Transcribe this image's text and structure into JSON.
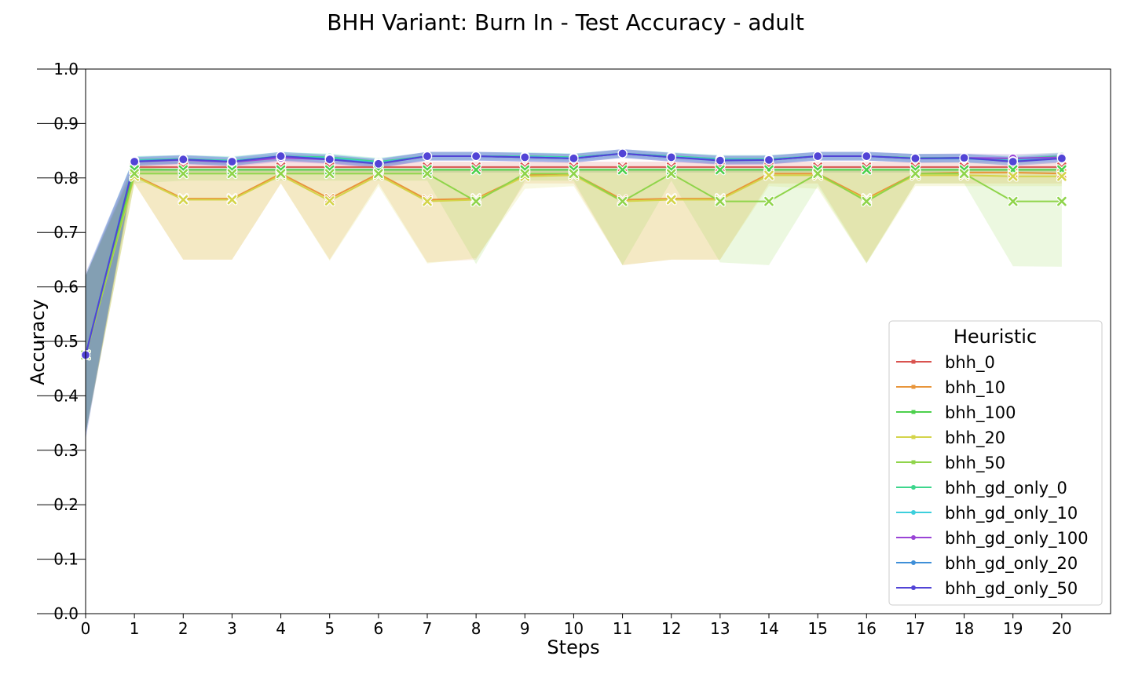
{
  "chart_data": {
    "type": "line",
    "title": "BHH Variant: Burn In - Test Accuracy - adult",
    "xlabel": "Steps",
    "ylabel": "Accuracy",
    "xlim": [
      0,
      21
    ],
    "ylim": [
      0.0,
      1.0
    ],
    "x_ticks": [
      0,
      1,
      2,
      3,
      4,
      5,
      6,
      7,
      8,
      9,
      10,
      11,
      12,
      13,
      14,
      15,
      16,
      17,
      18,
      19,
      20
    ],
    "y_ticks": [
      "0.0",
      "0.1",
      "0.2",
      "0.3",
      "0.4",
      "0.5",
      "0.6",
      "0.7",
      "0.8",
      "0.9",
      "1.0"
    ],
    "grid": false,
    "legend": {
      "title": "Heuristic",
      "position": "lower-right"
    },
    "x": [
      0,
      1,
      2,
      3,
      4,
      5,
      6,
      7,
      8,
      9,
      10,
      11,
      12,
      13,
      14,
      15,
      16,
      17,
      18,
      19,
      20
    ],
    "series": [
      {
        "name": "bhh_0",
        "color": "#d9534f",
        "marker": "x",
        "values": [
          0.475,
          0.82,
          0.82,
          0.82,
          0.82,
          0.82,
          0.82,
          0.82,
          0.82,
          0.82,
          0.82,
          0.82,
          0.82,
          0.82,
          0.82,
          0.82,
          0.82,
          0.82,
          0.82,
          0.82,
          0.82
        ],
        "band": [
          [
            0.33,
            0.62
          ],
          [
            0.81,
            0.83
          ],
          [
            0.81,
            0.83
          ],
          [
            0.81,
            0.83
          ],
          [
            0.81,
            0.835
          ],
          [
            0.81,
            0.83
          ],
          [
            0.81,
            0.83
          ],
          [
            0.81,
            0.83
          ],
          [
            0.81,
            0.83
          ],
          [
            0.81,
            0.83
          ],
          [
            0.81,
            0.83
          ],
          [
            0.81,
            0.83
          ],
          [
            0.81,
            0.83
          ],
          [
            0.81,
            0.83
          ],
          [
            0.81,
            0.83
          ],
          [
            0.81,
            0.83
          ],
          [
            0.81,
            0.83
          ],
          [
            0.81,
            0.83
          ],
          [
            0.81,
            0.83
          ],
          [
            0.81,
            0.83
          ],
          [
            0.81,
            0.83
          ]
        ]
      },
      {
        "name": "bhh_10",
        "color": "#e8953a",
        "marker": "x",
        "values": [
          0.475,
          0.805,
          0.762,
          0.762,
          0.808,
          0.762,
          0.808,
          0.76,
          0.762,
          0.805,
          0.808,
          0.76,
          0.762,
          0.762,
          0.808,
          0.808,
          0.762,
          0.808,
          0.81,
          0.81,
          0.808
        ],
        "band": [
          [
            0.33,
            0.62
          ],
          [
            0.79,
            0.82
          ],
          [
            0.65,
            0.815
          ],
          [
            0.65,
            0.815
          ],
          [
            0.79,
            0.815
          ],
          [
            0.65,
            0.815
          ],
          [
            0.79,
            0.815
          ],
          [
            0.645,
            0.815
          ],
          [
            0.65,
            0.815
          ],
          [
            0.79,
            0.815
          ],
          [
            0.79,
            0.815
          ],
          [
            0.64,
            0.815
          ],
          [
            0.65,
            0.815
          ],
          [
            0.65,
            0.815
          ],
          [
            0.79,
            0.815
          ],
          [
            0.79,
            0.815
          ],
          [
            0.645,
            0.815
          ],
          [
            0.79,
            0.815
          ],
          [
            0.79,
            0.815
          ],
          [
            0.79,
            0.815
          ],
          [
            0.79,
            0.815
          ]
        ]
      },
      {
        "name": "bhh_100",
        "color": "#4cd04c",
        "marker": "x",
        "values": [
          0.475,
          0.815,
          0.815,
          0.815,
          0.815,
          0.815,
          0.815,
          0.815,
          0.815,
          0.815,
          0.815,
          0.815,
          0.815,
          0.815,
          0.815,
          0.815,
          0.815,
          0.815,
          0.815,
          0.815,
          0.815
        ],
        "band": [
          [
            0.33,
            0.62
          ],
          [
            0.81,
            0.825
          ],
          [
            0.81,
            0.82
          ],
          [
            0.81,
            0.82
          ],
          [
            0.81,
            0.82
          ],
          [
            0.81,
            0.82
          ],
          [
            0.81,
            0.82
          ],
          [
            0.81,
            0.82
          ],
          [
            0.81,
            0.82
          ],
          [
            0.81,
            0.82
          ],
          [
            0.81,
            0.82
          ],
          [
            0.81,
            0.82
          ],
          [
            0.81,
            0.82
          ],
          [
            0.81,
            0.82
          ],
          [
            0.81,
            0.82
          ],
          [
            0.81,
            0.82
          ],
          [
            0.81,
            0.82
          ],
          [
            0.81,
            0.82
          ],
          [
            0.81,
            0.82
          ],
          [
            0.81,
            0.82
          ],
          [
            0.81,
            0.82
          ]
        ]
      },
      {
        "name": "bhh_20",
        "color": "#d4d44a",
        "marker": "x",
        "values": [
          0.475,
          0.803,
          0.76,
          0.76,
          0.805,
          0.758,
          0.805,
          0.757,
          0.76,
          0.803,
          0.805,
          0.757,
          0.76,
          0.76,
          0.805,
          0.805,
          0.76,
          0.805,
          0.805,
          0.803,
          0.803
        ],
        "band": [
          [
            0.33,
            0.62
          ],
          [
            0.79,
            0.815
          ],
          [
            0.65,
            0.81
          ],
          [
            0.65,
            0.81
          ],
          [
            0.79,
            0.81
          ],
          [
            0.648,
            0.81
          ],
          [
            0.785,
            0.81
          ],
          [
            0.643,
            0.81
          ],
          [
            0.653,
            0.81
          ],
          [
            0.78,
            0.81
          ],
          [
            0.785,
            0.81
          ],
          [
            0.64,
            0.81
          ],
          [
            0.65,
            0.81
          ],
          [
            0.65,
            0.81
          ],
          [
            0.785,
            0.81
          ],
          [
            0.78,
            0.81
          ],
          [
            0.643,
            0.81
          ],
          [
            0.785,
            0.81
          ],
          [
            0.785,
            0.81
          ],
          [
            0.785,
            0.81
          ],
          [
            0.785,
            0.81
          ]
        ]
      },
      {
        "name": "bhh_50",
        "color": "#8fd44a",
        "marker": "x",
        "values": [
          0.475,
          0.808,
          0.808,
          0.808,
          0.808,
          0.808,
          0.808,
          0.808,
          0.757,
          0.808,
          0.808,
          0.757,
          0.808,
          0.757,
          0.757,
          0.808,
          0.757,
          0.808,
          0.808,
          0.757,
          0.757
        ],
        "band": [
          [
            0.33,
            0.62
          ],
          [
            0.79,
            0.82
          ],
          [
            0.795,
            0.815
          ],
          [
            0.795,
            0.815
          ],
          [
            0.795,
            0.815
          ],
          [
            0.795,
            0.815
          ],
          [
            0.795,
            0.815
          ],
          [
            0.795,
            0.815
          ],
          [
            0.642,
            0.815
          ],
          [
            0.795,
            0.815
          ],
          [
            0.795,
            0.815
          ],
          [
            0.64,
            0.815
          ],
          [
            0.795,
            0.815
          ],
          [
            0.645,
            0.815
          ],
          [
            0.64,
            0.815
          ],
          [
            0.785,
            0.815
          ],
          [
            0.643,
            0.815
          ],
          [
            0.79,
            0.815
          ],
          [
            0.79,
            0.815
          ],
          [
            0.638,
            0.815
          ],
          [
            0.637,
            0.815
          ]
        ]
      },
      {
        "name": "bhh_gd_only_0",
        "color": "#3dd68c",
        "marker": "o",
        "values": [
          0.475,
          0.833,
          0.835,
          0.832,
          0.84,
          0.838,
          0.83,
          0.84,
          0.84,
          0.84,
          0.838,
          0.845,
          0.84,
          0.835,
          0.835,
          0.84,
          0.84,
          0.837,
          0.837,
          0.835,
          0.84
        ],
        "band": [
          [
            0.33,
            0.62
          ],
          [
            0.825,
            0.84
          ],
          [
            0.827,
            0.842
          ],
          [
            0.825,
            0.84
          ],
          [
            0.833,
            0.847
          ],
          [
            0.831,
            0.845
          ],
          [
            0.823,
            0.837
          ],
          [
            0.833,
            0.847
          ],
          [
            0.833,
            0.847
          ],
          [
            0.833,
            0.847
          ],
          [
            0.831,
            0.845
          ],
          [
            0.838,
            0.852
          ],
          [
            0.833,
            0.847
          ],
          [
            0.828,
            0.842
          ],
          [
            0.828,
            0.842
          ],
          [
            0.833,
            0.847
          ],
          [
            0.833,
            0.847
          ],
          [
            0.83,
            0.844
          ],
          [
            0.83,
            0.844
          ],
          [
            0.828,
            0.842
          ],
          [
            0.833,
            0.847
          ]
        ]
      },
      {
        "name": "bhh_gd_only_10",
        "color": "#3ccfdc",
        "marker": "o",
        "values": [
          0.475,
          0.832,
          0.834,
          0.831,
          0.84,
          0.836,
          0.828,
          0.84,
          0.84,
          0.839,
          0.837,
          0.845,
          0.839,
          0.834,
          0.834,
          0.84,
          0.84,
          0.836,
          0.836,
          0.832,
          0.838
        ],
        "band": [
          [
            0.33,
            0.62
          ],
          [
            0.824,
            0.84
          ],
          [
            0.826,
            0.842
          ],
          [
            0.823,
            0.839
          ],
          [
            0.832,
            0.848
          ],
          [
            0.828,
            0.844
          ],
          [
            0.82,
            0.836
          ],
          [
            0.832,
            0.848
          ],
          [
            0.832,
            0.848
          ],
          [
            0.831,
            0.847
          ],
          [
            0.829,
            0.845
          ],
          [
            0.837,
            0.853
          ],
          [
            0.831,
            0.847
          ],
          [
            0.826,
            0.842
          ],
          [
            0.826,
            0.842
          ],
          [
            0.832,
            0.848
          ],
          [
            0.832,
            0.848
          ],
          [
            0.828,
            0.844
          ],
          [
            0.828,
            0.844
          ],
          [
            0.824,
            0.84
          ],
          [
            0.83,
            0.846
          ]
        ]
      },
      {
        "name": "bhh_gd_only_100",
        "color": "#9a44d6",
        "marker": "o",
        "values": [
          0.475,
          0.83,
          0.833,
          0.829,
          0.837,
          0.834,
          0.827,
          0.84,
          0.84,
          0.838,
          0.836,
          0.845,
          0.838,
          0.833,
          0.833,
          0.84,
          0.84,
          0.836,
          0.837,
          0.836,
          0.838
        ],
        "band": [
          [
            0.33,
            0.62
          ],
          [
            0.822,
            0.838
          ],
          [
            0.825,
            0.841
          ],
          [
            0.821,
            0.837
          ],
          [
            0.829,
            0.845
          ],
          [
            0.826,
            0.842
          ],
          [
            0.819,
            0.835
          ],
          [
            0.832,
            0.848
          ],
          [
            0.832,
            0.848
          ],
          [
            0.83,
            0.846
          ],
          [
            0.828,
            0.844
          ],
          [
            0.837,
            0.853
          ],
          [
            0.83,
            0.846
          ],
          [
            0.825,
            0.841
          ],
          [
            0.825,
            0.841
          ],
          [
            0.832,
            0.848
          ],
          [
            0.832,
            0.848
          ],
          [
            0.828,
            0.844
          ],
          [
            0.829,
            0.845
          ],
          [
            0.828,
            0.844
          ],
          [
            0.83,
            0.846
          ]
        ]
      },
      {
        "name": "bhh_gd_only_20",
        "color": "#3f8fd8",
        "marker": "o",
        "values": [
          0.475,
          0.831,
          0.834,
          0.83,
          0.84,
          0.835,
          0.827,
          0.84,
          0.84,
          0.838,
          0.836,
          0.845,
          0.838,
          0.833,
          0.833,
          0.84,
          0.84,
          0.836,
          0.836,
          0.831,
          0.836
        ],
        "band": [
          [
            0.32,
            0.625
          ],
          [
            0.823,
            0.839
          ],
          [
            0.826,
            0.842
          ],
          [
            0.822,
            0.838
          ],
          [
            0.832,
            0.848
          ],
          [
            0.827,
            0.843
          ],
          [
            0.819,
            0.835
          ],
          [
            0.832,
            0.848
          ],
          [
            0.832,
            0.848
          ],
          [
            0.83,
            0.846
          ],
          [
            0.828,
            0.844
          ],
          [
            0.837,
            0.853
          ],
          [
            0.83,
            0.846
          ],
          [
            0.825,
            0.841
          ],
          [
            0.825,
            0.841
          ],
          [
            0.832,
            0.848
          ],
          [
            0.832,
            0.848
          ],
          [
            0.828,
            0.844
          ],
          [
            0.828,
            0.844
          ],
          [
            0.823,
            0.839
          ],
          [
            0.828,
            0.844
          ]
        ]
      },
      {
        "name": "bhh_gd_only_50",
        "color": "#5244d6",
        "marker": "o",
        "values": [
          0.475,
          0.83,
          0.834,
          0.83,
          0.84,
          0.834,
          0.826,
          0.84,
          0.84,
          0.838,
          0.836,
          0.845,
          0.838,
          0.832,
          0.833,
          0.84,
          0.84,
          0.836,
          0.837,
          0.83,
          0.836
        ],
        "band": [
          [
            0.32,
            0.625
          ],
          [
            0.822,
            0.838
          ],
          [
            0.826,
            0.842
          ],
          [
            0.822,
            0.838
          ],
          [
            0.832,
            0.848
          ],
          [
            0.826,
            0.842
          ],
          [
            0.818,
            0.834
          ],
          [
            0.832,
            0.848
          ],
          [
            0.832,
            0.848
          ],
          [
            0.83,
            0.846
          ],
          [
            0.828,
            0.844
          ],
          [
            0.837,
            0.853
          ],
          [
            0.83,
            0.846
          ],
          [
            0.824,
            0.84
          ],
          [
            0.825,
            0.841
          ],
          [
            0.832,
            0.848
          ],
          [
            0.832,
            0.848
          ],
          [
            0.828,
            0.844
          ],
          [
            0.829,
            0.845
          ],
          [
            0.822,
            0.838
          ],
          [
            0.828,
            0.844
          ]
        ]
      }
    ]
  }
}
